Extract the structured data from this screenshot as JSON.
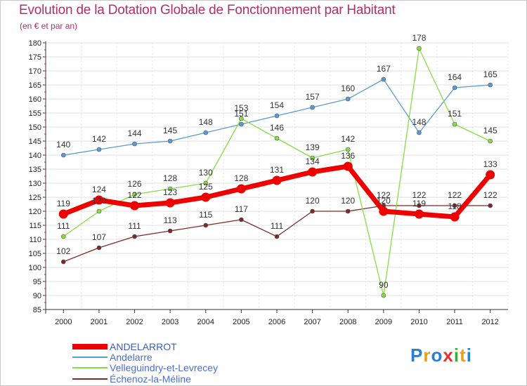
{
  "title": "Evolution de la Dotation Globale de Fonctionnement par Habitant",
  "subtitle": "(en € et par an)",
  "logo": "Proxiti",
  "chart_data": {
    "type": "line",
    "title": "Evolution de la Dotation Globale de Fonctionnement par Habitant",
    "ylabel": "(en € et par an)",
    "xlabel": "",
    "x": [
      "2000",
      "2001",
      "2002",
      "2003",
      "2004",
      "2005",
      "2006",
      "2007",
      "2008",
      "2009",
      "2010",
      "2011",
      "2012"
    ],
    "ylim": [
      85,
      180
    ],
    "yticks": [
      85,
      90,
      95,
      100,
      105,
      110,
      115,
      120,
      125,
      130,
      135,
      140,
      145,
      150,
      155,
      160,
      165,
      170,
      175,
      180
    ],
    "grid": true,
    "legend_position": "bottom-left",
    "series": [
      {
        "name": "ANDELARROT",
        "color": "#ee0000",
        "values": [
          119,
          124,
          122,
          123,
          125,
          128,
          131,
          134,
          136,
          120,
          119,
          118,
          133
        ],
        "labels": [
          "119",
          "124",
          "122",
          "123",
          "125",
          "128",
          "131",
          "134",
          "136",
          "120",
          "119",
          "118",
          "133"
        ]
      },
      {
        "name": "Andelarre",
        "color": "#5b9bd5",
        "values": [
          140,
          142,
          144,
          145,
          148,
          151,
          154,
          157,
          160,
          167,
          148,
          164,
          165
        ],
        "labels": [
          "140",
          "142",
          "144",
          "145",
          "148",
          "151",
          "154",
          "157",
          "160",
          "167",
          "148",
          "164",
          "165"
        ]
      },
      {
        "name": "Velleguindry-et-Levrecey",
        "color": "#88dd44",
        "values": [
          111,
          120,
          126,
          128,
          130,
          153,
          146,
          139,
          142,
          90,
          178,
          151,
          145
        ],
        "labels": [
          "111",
          "120",
          "126",
          "128",
          "130",
          "153",
          "146",
          "139",
          "142",
          "90",
          "178",
          "151",
          "145"
        ]
      },
      {
        "name": "Échenoz-la-Méline",
        "color": "#7a2a2a",
        "values": [
          102,
          107,
          111,
          113,
          115,
          117,
          111,
          120,
          120,
          122,
          122,
          122,
          122
        ],
        "labels": [
          "102",
          "107",
          "111",
          "113",
          "115",
          "117",
          "111",
          "120",
          "120",
          "122",
          "122",
          "122",
          "122"
        ]
      }
    ]
  }
}
